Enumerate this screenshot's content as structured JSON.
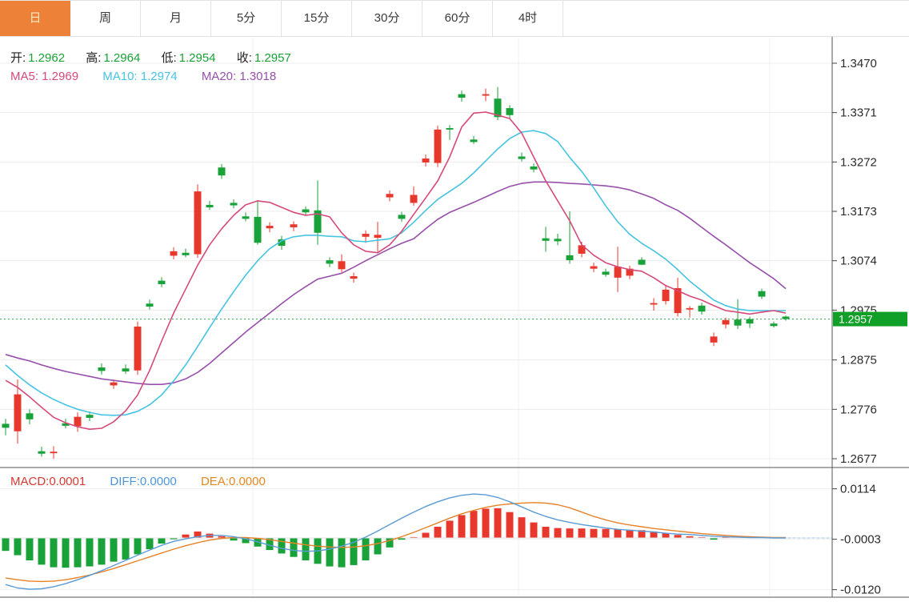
{
  "tabs": {
    "items": [
      {
        "label": "日",
        "active": true
      },
      {
        "label": "周",
        "active": false
      },
      {
        "label": "月",
        "active": false
      },
      {
        "label": "5分",
        "active": false
      },
      {
        "label": "15分",
        "active": false
      },
      {
        "label": "30分",
        "active": false
      },
      {
        "label": "60分",
        "active": false
      },
      {
        "label": "4时",
        "active": false
      }
    ]
  },
  "legend": {
    "ohlc": [
      {
        "label": "开:",
        "value": "1.2962"
      },
      {
        "label": "高:",
        "value": "1.2964"
      },
      {
        "label": "低:",
        "value": "1.2954"
      },
      {
        "label": "收:",
        "value": "1.2957"
      }
    ],
    "ma": [
      {
        "text": "MA5: 1.2969",
        "color": "#D5497B"
      },
      {
        "text": "MA10: 1.2974",
        "color": "#46C3E1"
      },
      {
        "text": "MA20: 1.3018",
        "color": "#9650AA"
      }
    ]
  },
  "macd_legend": [
    {
      "text": "MACD:0.0001",
      "color": "#D33A32"
    },
    {
      "text": "DIFF:0.0000",
      "color": "#4D96DB"
    },
    {
      "text": "DEA:0.0000",
      "color": "#E5871F"
    }
  ],
  "colors": {
    "up": "#E8382E",
    "down": "#1AA23A",
    "ma5": "#D5497B",
    "ma10": "#46C3E1",
    "ma20": "#9650AA",
    "diff_line": "#5A9BD5",
    "dea_line": "#E68228",
    "tab_active": "#EE8138",
    "badge": "#10A028",
    "price_line": "#30A848",
    "ohlc_value": "#18A236"
  },
  "chart_data": {
    "type": "candlestick+macd",
    "x_count": 66,
    "axis": {
      "price_max": 1.347,
      "price_min": 1.2677,
      "price_ticks": [
        1.347,
        1.3371,
        1.3272,
        1.3173,
        1.3074,
        1.2975,
        1.2875,
        1.2776,
        1.2677
      ],
      "macd_ticks": [
        0.0114,
        -0.0003,
        -0.012
      ]
    },
    "current_price": 1.2957,
    "last_bar": {
      "open": 1.2962,
      "high": 1.2964,
      "low": 1.2954,
      "close": 1.2957
    },
    "candles": [
      [
        1.2747,
        1.2757,
        1.2724,
        1.2739
      ],
      [
        1.2732,
        1.2836,
        1.2707,
        1.2806
      ],
      [
        1.2768,
        1.2776,
        1.2746,
        1.2756
      ],
      [
        1.2692,
        1.2701,
        1.2681,
        1.2687
      ],
      [
        1.2688,
        1.2702,
        1.2677,
        1.2691
      ],
      [
        1.2748,
        1.2757,
        1.2738,
        1.2743
      ],
      [
        1.2742,
        1.277,
        1.2731,
        1.2761
      ],
      [
        1.2765,
        1.2772,
        1.2752,
        1.2759
      ],
      [
        1.286,
        1.2868,
        1.2846,
        1.2853
      ],
      [
        1.2824,
        1.2836,
        1.2817,
        1.283
      ],
      [
        1.2858,
        1.2866,
        1.2847,
        1.2852
      ],
      [
        1.2854,
        1.2952,
        1.2845,
        1.2942
      ],
      [
        1.2988,
        1.2996,
        1.2976,
        1.2982
      ],
      [
        1.3034,
        1.3041,
        1.3021,
        1.3027
      ],
      [
        1.3084,
        1.3101,
        1.3077,
        1.3093
      ],
      [
        1.309,
        1.3098,
        1.3081,
        1.3085
      ],
      [
        1.3087,
        1.3227,
        1.308,
        1.3213
      ],
      [
        1.3186,
        1.3194,
        1.3176,
        1.3181
      ],
      [
        1.3261,
        1.3268,
        1.3238,
        1.3245
      ],
      [
        1.319,
        1.3197,
        1.3179,
        1.3185
      ],
      [
        1.3163,
        1.3171,
        1.3153,
        1.3158
      ],
      [
        1.3162,
        1.3195,
        1.3106,
        1.311
      ],
      [
        1.3139,
        1.3151,
        1.3131,
        1.3144
      ],
      [
        1.3117,
        1.3124,
        1.3096,
        1.3104
      ],
      [
        1.3141,
        1.3153,
        1.3133,
        1.3147
      ],
      [
        1.3177,
        1.3183,
        1.3165,
        1.3171
      ],
      [
        1.3175,
        1.3235,
        1.3106,
        1.313
      ],
      [
        1.3075,
        1.3081,
        1.3061,
        1.3068
      ],
      [
        1.3057,
        1.3087,
        1.3051,
        1.3073
      ],
      [
        1.3038,
        1.305,
        1.303,
        1.3043
      ],
      [
        1.3122,
        1.3135,
        1.311,
        1.3128
      ],
      [
        1.312,
        1.3152,
        1.3092,
        1.3126
      ],
      [
        1.3201,
        1.3215,
        1.3193,
        1.3208
      ],
      [
        1.3166,
        1.3172,
        1.3152,
        1.3158
      ],
      [
        1.319,
        1.3223,
        1.3184,
        1.3206
      ],
      [
        1.3271,
        1.3287,
        1.3263,
        1.3279
      ],
      [
        1.327,
        1.3345,
        1.3262,
        1.3337
      ],
      [
        1.334,
        1.3346,
        1.3316,
        1.3337
      ],
      [
        1.3408,
        1.3415,
        1.3393,
        1.3401
      ],
      [
        1.3317,
        1.3324,
        1.3308,
        1.3312
      ],
      [
        1.3405,
        1.3419,
        1.3394,
        1.3408
      ],
      [
        1.3399,
        1.3422,
        1.3356,
        1.3362
      ],
      [
        1.338,
        1.3386,
        1.3358,
        1.3366
      ],
      [
        1.3283,
        1.3291,
        1.3273,
        1.3278
      ],
      [
        1.3263,
        1.3269,
        1.3251,
        1.3257
      ],
      [
        1.3119,
        1.3142,
        1.3092,
        1.3114
      ],
      [
        1.3118,
        1.3128,
        1.3105,
        1.3113
      ],
      [
        1.3085,
        1.3173,
        1.3068,
        1.3075
      ],
      [
        1.3088,
        1.3112,
        1.3081,
        1.3105
      ],
      [
        1.3058,
        1.307,
        1.3051,
        1.3063
      ],
      [
        1.3052,
        1.3058,
        1.3042,
        1.3046
      ],
      [
        1.304,
        1.3102,
        1.3011,
        1.3062
      ],
      [
        1.3044,
        1.3064,
        1.3037,
        1.3058
      ],
      [
        1.3076,
        1.3081,
        1.3065,
        1.3066
      ],
      [
        1.2986,
        1.2999,
        1.2974,
        1.2989
      ],
      [
        1.2993,
        1.3026,
        1.2986,
        1.3016
      ],
      [
        1.2969,
        1.304,
        1.2962,
        1.3019
      ],
      [
        1.2977,
        1.2983,
        1.296,
        1.2979
      ],
      [
        1.2984,
        1.299,
        1.2966,
        1.2972
      ],
      [
        1.291,
        1.293,
        1.2903,
        1.2922
      ],
      [
        1.2946,
        1.296,
        1.2938,
        1.2955
      ],
      [
        1.2956,
        1.2997,
        1.2937,
        1.2944
      ],
      [
        1.2957,
        1.2962,
        1.2939,
        1.2948
      ],
      [
        1.3013,
        1.3018,
        1.2997,
        1.3002
      ],
      [
        1.2948,
        1.2952,
        1.294,
        1.2943
      ],
      [
        1.2962,
        1.2964,
        1.2954,
        1.2957
      ]
    ],
    "ma5": [
      1.2834,
      1.282,
      1.2801,
      1.278,
      1.276,
      1.2749,
      1.2741,
      1.2736,
      1.2738,
      1.2751,
      1.2773,
      1.2805,
      1.2854,
      1.2913,
      1.2969,
      1.3017,
      1.3065,
      1.3106,
      1.3138,
      1.3165,
      1.3186,
      1.3194,
      1.3191,
      1.3181,
      1.3171,
      1.3165,
      1.3168,
      1.3162,
      1.313,
      1.3106,
      1.3093,
      1.309,
      1.3106,
      1.3133,
      1.3167,
      1.32,
      1.3234,
      1.3282,
      1.3342,
      1.337,
      1.3372,
      1.3366,
      1.3359,
      1.333,
      1.3282,
      1.3234,
      1.3194,
      1.3154,
      1.3106,
      1.3085,
      1.307,
      1.3062,
      1.3056,
      1.3053,
      1.304,
      1.3024,
      1.3014,
      1.3003,
      1.2995,
      1.2984,
      1.2974,
      1.2971,
      1.2967,
      1.2971,
      1.2974,
      1.2969
    ],
    "ma10": [
      1.2865,
      1.2844,
      1.2825,
      1.2809,
      1.2796,
      1.2785,
      1.2776,
      1.277,
      1.2765,
      1.2764,
      1.2765,
      1.2772,
      1.2785,
      1.2805,
      1.2833,
      1.2865,
      1.2902,
      1.294,
      1.2977,
      1.3012,
      1.3045,
      1.3074,
      1.3098,
      1.3114,
      1.3122,
      1.3125,
      1.3125,
      1.3123,
      1.3122,
      1.3114,
      1.3112,
      1.3115,
      1.3118,
      1.313,
      1.3151,
      1.3175,
      1.3197,
      1.3213,
      1.3229,
      1.325,
      1.3274,
      1.3298,
      1.3319,
      1.3332,
      1.3335,
      1.3329,
      1.3313,
      1.3281,
      1.3253,
      1.322,
      1.3184,
      1.3152,
      1.3127,
      1.3109,
      1.3094,
      1.3077,
      1.3056,
      1.3033,
      1.3014,
      1.2995,
      1.2984,
      1.2977,
      1.2974,
      1.2974,
      1.2974,
      1.2974
    ],
    "ma20": [
      1.2886,
      1.2879,
      1.2873,
      1.2865,
      1.2858,
      1.2852,
      1.2847,
      1.2842,
      1.2837,
      1.2834,
      1.2831,
      1.2828,
      1.2826,
      1.2826,
      1.2829,
      1.2837,
      1.285,
      1.2868,
      1.2889,
      1.291,
      1.2931,
      1.295,
      1.2969,
      1.2988,
      1.3006,
      1.3022,
      1.3037,
      1.3043,
      1.3049,
      1.3061,
      1.3074,
      1.3086,
      1.3098,
      1.3109,
      1.3118,
      1.3138,
      1.3157,
      1.3171,
      1.3181,
      1.3191,
      1.3202,
      1.3213,
      1.3223,
      1.3229,
      1.3232,
      1.3232,
      1.3231,
      1.3229,
      1.3228,
      1.3226,
      1.3224,
      1.3221,
      1.3216,
      1.3208,
      1.3199,
      1.3186,
      1.3175,
      1.3159,
      1.3141,
      1.3123,
      1.3106,
      1.3088,
      1.307,
      1.3054,
      1.3038,
      1.3018
    ],
    "macd_hist": [
      -0.003,
      -0.004,
      -0.0052,
      -0.0062,
      -0.0068,
      -0.0069,
      -0.0068,
      -0.0066,
      -0.0062,
      -0.0055,
      -0.005,
      -0.0038,
      -0.0026,
      -0.0013,
      -0.0003,
      0.0008,
      0.0015,
      0.001,
      0.0004,
      -0.0006,
      -0.0012,
      -0.002,
      -0.0028,
      -0.0036,
      -0.0044,
      -0.0052,
      -0.006,
      -0.0066,
      -0.0068,
      -0.0063,
      -0.0052,
      -0.0038,
      -0.0022,
      -0.0004,
      0.0002,
      0.0012,
      0.0026,
      0.004,
      0.0053,
      0.0063,
      0.0068,
      0.0069,
      0.006,
      0.0048,
      0.0036,
      0.0026,
      0.0023,
      0.0022,
      0.0022,
      0.0021,
      0.0021,
      0.002,
      0.0019,
      0.0018,
      0.0015,
      0.0011,
      0.0007,
      0.0004,
      0.0002,
      -0.0004,
      0.0002,
      0.0002,
      0.0001,
      0.0001,
      0.0001,
      0.0001
    ],
    "diff": [
      -0.0108,
      -0.0116,
      -0.0119,
      -0.0118,
      -0.0113,
      -0.0106,
      -0.0097,
      -0.0087,
      -0.0076,
      -0.0064,
      -0.0052,
      -0.004,
      -0.0028,
      -0.0017,
      -0.0008,
      -0.0002,
      0.0003,
      0.0006,
      0.0006,
      0.0003,
      -0.0002,
      -0.0009,
      -0.0017,
      -0.0024,
      -0.0029,
      -0.0031,
      -0.003,
      -0.0026,
      -0.0019,
      -0.001,
      0.0002,
      0.0016,
      0.0031,
      0.0046,
      0.006,
      0.0073,
      0.0084,
      0.0093,
      0.0099,
      0.0102,
      0.01,
      0.0094,
      0.0084,
      0.0072,
      0.006,
      0.005,
      0.0042,
      0.0036,
      0.0031,
      0.0027,
      0.0023,
      0.002,
      0.0018,
      0.0016,
      0.0014,
      0.0011,
      0.0009,
      0.0008,
      0.0006,
      0.0004,
      0.0003,
      0.0002,
      0.0001,
      0.0001,
      0.0,
      0.0
    ],
    "dea": [
      -0.0093,
      -0.0097,
      -0.01,
      -0.0101,
      -0.01,
      -0.0097,
      -0.0092,
      -0.0086,
      -0.0079,
      -0.0071,
      -0.0062,
      -0.0053,
      -0.0044,
      -0.0035,
      -0.0026,
      -0.0018,
      -0.0011,
      -0.0005,
      -0.0001,
      0.0001,
      0.0001,
      -0.0001,
      -0.0004,
      -0.0008,
      -0.0012,
      -0.0016,
      -0.0019,
      -0.0021,
      -0.0022,
      -0.0021,
      -0.0018,
      -0.0013,
      -0.0006,
      0.0003,
      0.0013,
      0.0024,
      0.0035,
      0.0046,
      0.0056,
      0.0064,
      0.0071,
      0.0076,
      0.0079,
      0.0081,
      0.0082,
      0.0081,
      0.0077,
      0.007,
      0.006,
      0.005,
      0.0042,
      0.0035,
      0.003,
      0.0026,
      0.0022,
      0.0019,
      0.0016,
      0.0013,
      0.001,
      0.0008,
      0.0006,
      0.0004,
      0.0003,
      0.0002,
      0.0001,
      0.0001
    ]
  }
}
